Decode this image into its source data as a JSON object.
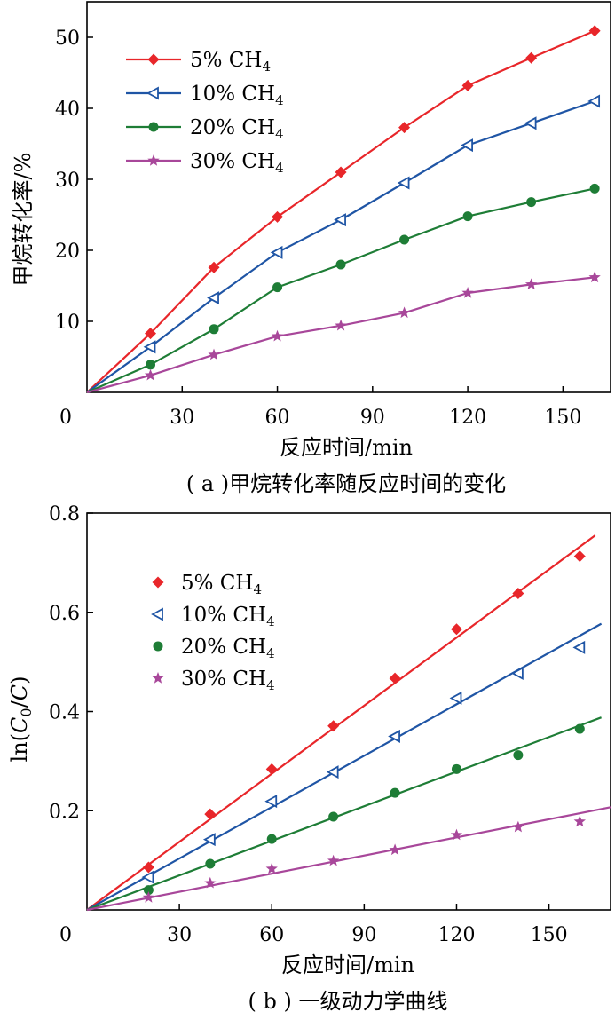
{
  "chart_data": [
    {
      "type": "line",
      "xlabel": "反应时间/min",
      "ylabel": "甲烷转化率/%",
      "caption": "( a )甲烷转化率随反应时间的变化",
      "xlim": [
        0,
        165
      ],
      "ylim": [
        0,
        55
      ],
      "xticks": [
        "0",
        "30",
        "60",
        "90",
        "120",
        "150"
      ],
      "yticks": [
        "10",
        "20",
        "30",
        "40",
        "50"
      ],
      "x": [
        0,
        20,
        40,
        60,
        80,
        100,
        120,
        140,
        160
      ],
      "legend_position": "top-left",
      "series": [
        {
          "name": "5% CH",
          "sub": "4",
          "color": "#e8262a",
          "marker": "diamond",
          "values": [
            0,
            8.3,
            17.6,
            24.7,
            31.0,
            37.3,
            43.2,
            47.1,
            50.9
          ]
        },
        {
          "name": "10% CH",
          "sub": "4",
          "color": "#1f55a5",
          "marker": "triangle-left",
          "values": [
            0,
            6.4,
            13.3,
            19.7,
            24.3,
            29.5,
            34.8,
            37.9,
            41.0
          ]
        },
        {
          "name": "20% CH",
          "sub": "4",
          "color": "#1e7d36",
          "marker": "circle",
          "values": [
            0,
            3.9,
            8.9,
            14.8,
            18.0,
            21.5,
            24.8,
            26.8,
            28.7
          ]
        },
        {
          "name": "30% CH",
          "sub": "4",
          "color": "#a8479a",
          "marker": "star",
          "values": [
            0,
            2.4,
            5.3,
            7.9,
            9.4,
            11.2,
            14.0,
            15.2,
            16.2
          ]
        }
      ]
    },
    {
      "type": "scatter",
      "xlabel": "反应时间/min",
      "ylabel": "ln(C0/C)",
      "caption": "( b ) 一级动力学曲线",
      "xlim": [
        0,
        170
      ],
      "ylim": [
        0,
        0.8
      ],
      "xticks": [
        "0",
        "30",
        "60",
        "90",
        "120",
        "150"
      ],
      "yticks": [
        "0.2",
        "0.4",
        "0.6",
        "0.8"
      ],
      "x": [
        20,
        40,
        60,
        80,
        100,
        120,
        140,
        160
      ],
      "legend_position": "top-left",
      "series": [
        {
          "name": "5% CH",
          "sub": "4",
          "color": "#e8262a",
          "marker": "diamond",
          "values": [
            0.086,
            0.193,
            0.284,
            0.371,
            0.467,
            0.566,
            0.638,
            0.713
          ],
          "fit": [
            [
              0,
              0
            ],
            [
              165,
              0.755
            ]
          ]
        },
        {
          "name": "10% CH",
          "sub": "4",
          "color": "#1f55a5",
          "marker": "triangle-left",
          "values": [
            0.066,
            0.142,
            0.219,
            0.278,
            0.35,
            0.427,
            0.477,
            0.529
          ],
          "fit": [
            [
              0,
              0
            ],
            [
              167,
              0.577
            ]
          ]
        },
        {
          "name": "20% CH",
          "sub": "4",
          "color": "#1e7d36",
          "marker": "circle",
          "values": [
            0.04,
            0.093,
            0.143,
            0.188,
            0.236,
            0.284,
            0.312,
            0.365
          ],
          "fit": [
            [
              0,
              0
            ],
            [
              167,
              0.388
            ]
          ]
        },
        {
          "name": "30% CH",
          "sub": "4",
          "color": "#a8479a",
          "marker": "star",
          "values": [
            0.025,
            0.054,
            0.083,
            0.099,
            0.121,
            0.151,
            0.167,
            0.178
          ],
          "fit": [
            [
              0,
              0
            ],
            [
              170,
              0.207
            ]
          ]
        }
      ]
    }
  ]
}
